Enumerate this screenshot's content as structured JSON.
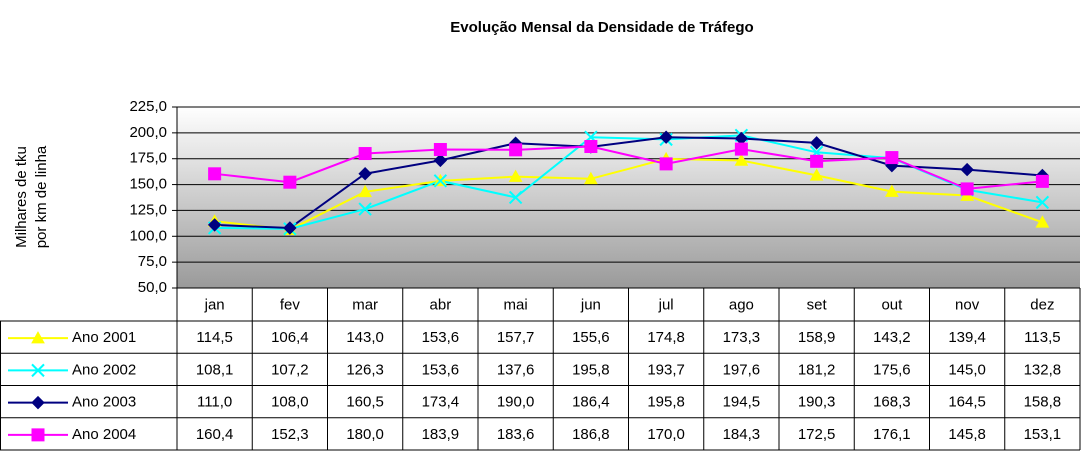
{
  "chart_data": {
    "type": "line",
    "title": "Evolução Mensal da Densidade de Tráfego",
    "ylabel": [
      "Milhares de tku",
      "por km de linha"
    ],
    "categories": [
      "jan",
      "fev",
      "mar",
      "abr",
      "mai",
      "jun",
      "jul",
      "ago",
      "set",
      "out",
      "nov",
      "dez"
    ],
    "ylim": [
      50,
      225
    ],
    "yticks": [
      {
        "value": 50,
        "label": "50,0"
      },
      {
        "value": 75,
        "label": "75,0"
      },
      {
        "value": 100,
        "label": "100,0"
      },
      {
        "value": 125,
        "label": "125,0"
      },
      {
        "value": 150,
        "label": "150,0"
      },
      {
        "value": 175,
        "label": "175,0"
      },
      {
        "value": 200,
        "label": "200,0"
      },
      {
        "value": 225,
        "label": "225,0"
      }
    ],
    "grid": true,
    "series": [
      {
        "name": "Ano 2001",
        "color": "#ffff00",
        "marker": "triangle",
        "values": [
          114.5,
          106.4,
          143.0,
          153.6,
          157.7,
          155.6,
          174.8,
          173.3,
          158.9,
          143.2,
          139.4,
          113.5
        ],
        "value_labels": [
          "114,5",
          "106,4",
          "143,0",
          "153,6",
          "157,7",
          "155,6",
          "174,8",
          "173,3",
          "158,9",
          "143,2",
          "139,4",
          "113,5"
        ]
      },
      {
        "name": "Ano 2002",
        "color": "#00ffff",
        "marker": "x",
        "values": [
          108.1,
          107.2,
          126.3,
          153.6,
          137.6,
          195.8,
          193.7,
          197.6,
          181.2,
          175.6,
          145.0,
          132.8
        ],
        "value_labels": [
          "108,1",
          "107,2",
          "126,3",
          "153,6",
          "137,6",
          "195,8",
          "193,7",
          "197,6",
          "181,2",
          "175,6",
          "145,0",
          "132,8"
        ]
      },
      {
        "name": "Ano 2003",
        "color": "#000080",
        "marker": "diamond",
        "values": [
          111.0,
          108.0,
          160.5,
          173.4,
          190.0,
          186.4,
          195.8,
          194.5,
          190.3,
          168.3,
          164.5,
          158.8
        ],
        "value_labels": [
          "111,0",
          "108,0",
          "160,5",
          "173,4",
          "190,0",
          "186,4",
          "195,8",
          "194,5",
          "190,3",
          "168,3",
          "164,5",
          "158,8"
        ]
      },
      {
        "name": "Ano 2004",
        "color": "#ff00ff",
        "marker": "square",
        "values": [
          160.4,
          152.3,
          180.0,
          183.9,
          183.6,
          186.8,
          170.0,
          184.3,
          172.5,
          176.1,
          145.8,
          153.1
        ],
        "value_labels": [
          "160,4",
          "152,3",
          "180,0",
          "183,9",
          "183,6",
          "186,8",
          "170,0",
          "184,3",
          "172,5",
          "176,1",
          "145,8",
          "153,1"
        ]
      }
    ]
  }
}
